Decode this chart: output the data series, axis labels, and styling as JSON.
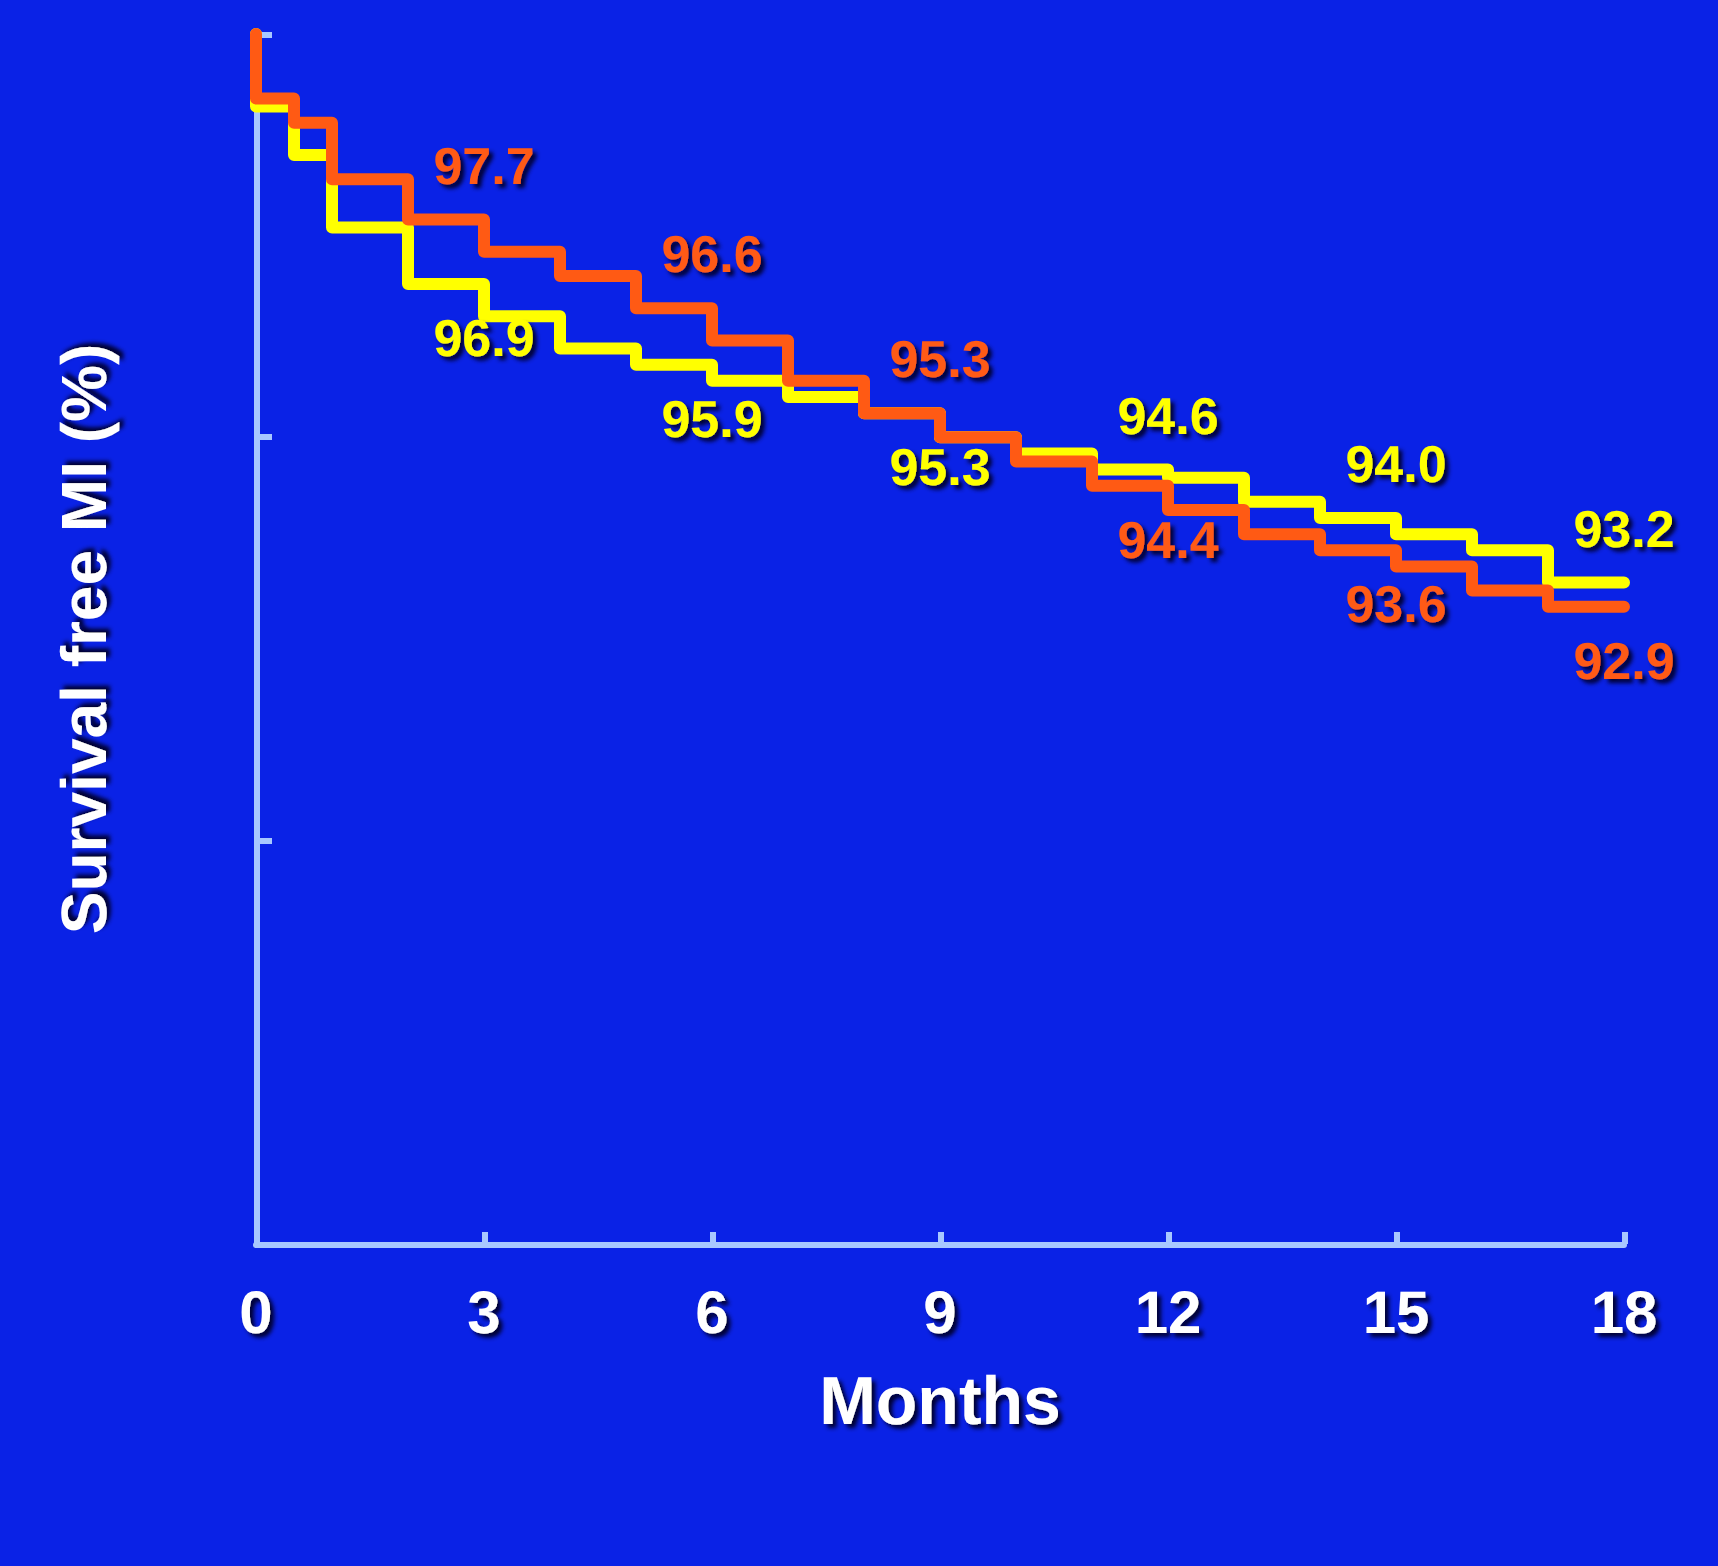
{
  "chart_data": {
    "type": "step",
    "xlabel": "Months",
    "ylabel": "Survival free MI (%)",
    "x": [
      0,
      0.5,
      1,
      2,
      3,
      4,
      5,
      6,
      7,
      8,
      9,
      10,
      11,
      12,
      13,
      14,
      15,
      16,
      17,
      18
    ],
    "series": [
      {
        "color": "#ffff00",
        "values": [
          100,
          99.1,
          98.5,
          97.6,
          96.9,
          96.5,
          96.1,
          95.9,
          95.7,
          95.5,
          95.3,
          95.0,
          94.8,
          94.6,
          94.5,
          94.2,
          94.0,
          93.8,
          93.6,
          93.2
        ],
        "value_labels": [
          null,
          null,
          null,
          null,
          "96.9",
          null,
          null,
          "95.9",
          null,
          null,
          "95.3",
          null,
          null,
          "94.6",
          null,
          null,
          "94.0",
          null,
          null,
          "93.2"
        ]
      },
      {
        "color": "#ff5a14",
        "values": [
          100,
          99.2,
          98.9,
          98.2,
          97.7,
          97.3,
          97.0,
          96.6,
          96.2,
          95.7,
          95.3,
          95.0,
          94.7,
          94.4,
          94.1,
          93.8,
          93.6,
          93.4,
          93.1,
          92.9
        ],
        "value_labels": [
          null,
          null,
          null,
          null,
          "97.7",
          null,
          null,
          "96.6",
          null,
          null,
          "95.3",
          null,
          null,
          "94.4",
          null,
          null,
          "93.6",
          null,
          null,
          "92.9"
        ]
      }
    ],
    "xlim": [
      0,
      18
    ],
    "xticks": [
      0,
      3,
      6,
      9,
      12,
      15,
      18
    ],
    "ylim": [
      85,
      100
    ],
    "yticks": [
      {
        "value": 85,
        "label": null
      },
      {
        "value": 90,
        "label": null
      },
      {
        "value": 95,
        "label": null
      },
      {
        "value": 100,
        "label": null
      }
    ],
    "tick_labels": "x",
    "grid": false,
    "marker": "none",
    "line_style": "solid"
  }
}
